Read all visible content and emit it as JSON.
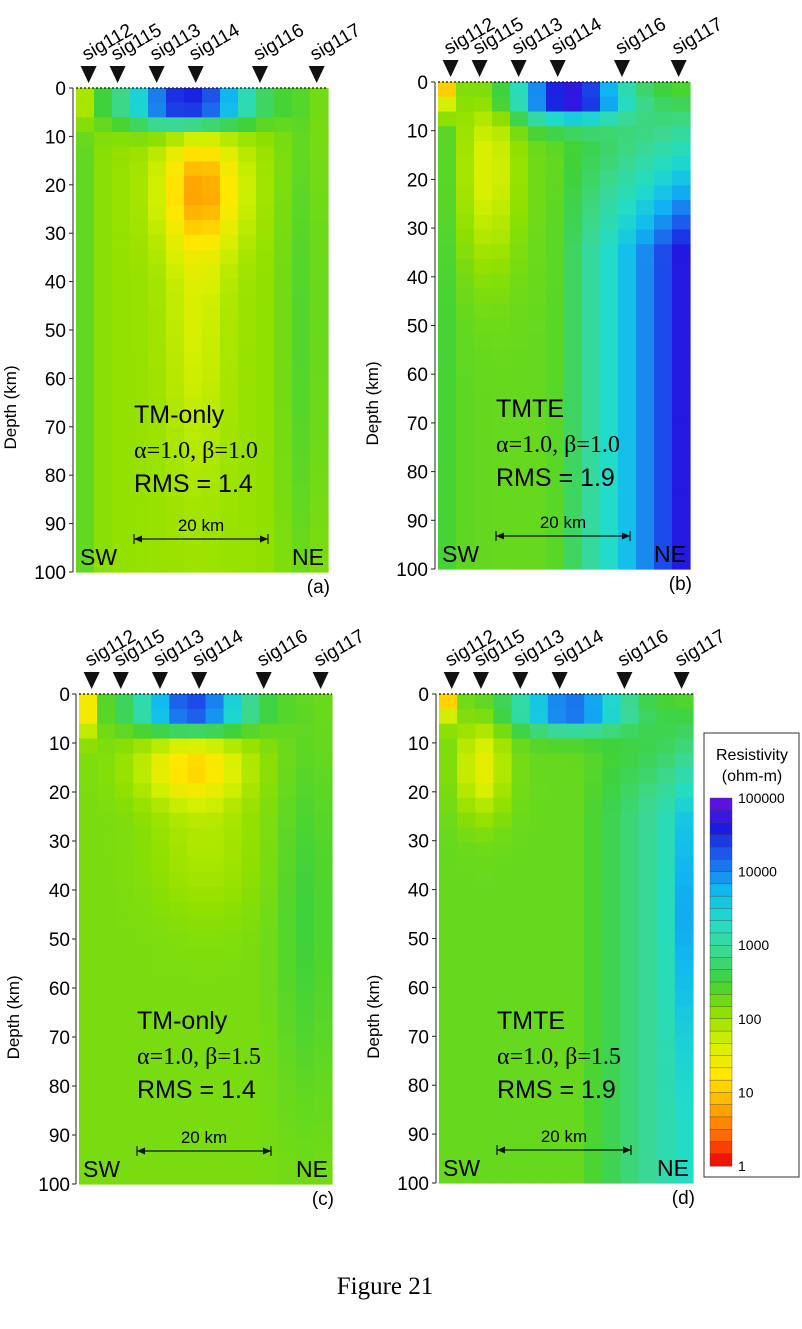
{
  "figure_caption": "Figure 21",
  "shared": {
    "ylabel": "Depth (km)",
    "y_ticks": [
      "0",
      "10",
      "20",
      "30",
      "40",
      "50",
      "60",
      "70",
      "80",
      "90",
      "100"
    ],
    "stations": [
      "sig112",
      "sig115",
      "sig113",
      "sig114",
      "sig116",
      "sig117"
    ],
    "left_label": "SW",
    "right_label": "NE",
    "scale_bar_label": "20 km"
  },
  "colorbar": {
    "title_line1": "Resistivity",
    "title_line2": "(ohm-m)",
    "labels": [
      "100000",
      "10000",
      "1000",
      "100",
      "10",
      "1"
    ],
    "scale": "log",
    "range": [
      1,
      100000
    ],
    "colors": [
      "#ee0000",
      "#ff6a00",
      "#ffb000",
      "#ffe800",
      "#d6f000",
      "#90e000",
      "#3fd23a",
      "#3cd890",
      "#22dcc8",
      "#10b8f2",
      "#1c66ec",
      "#1a1ae0",
      "#6a10e4"
    ]
  },
  "chart_data": [
    {
      "type": "heatmap",
      "panel_label": "(a)",
      "mode_label": "TM-only",
      "param_label": "α=1.0, β=1.0",
      "rms_label": "RMS = 1.4",
      "ylim": [
        0,
        100
      ],
      "features": [
        {
          "kind": "conductor",
          "log10_ohm_m": 1.0,
          "depth_km": 20
        },
        {
          "kind": "resistor",
          "log10_ohm_m": 4.9,
          "depth_km": 3
        }
      ]
    },
    {
      "type": "heatmap",
      "panel_label": "(b)",
      "mode_label": "TMTE",
      "param_label": "α=1.0, β=1.0",
      "rms_label": "RMS = 1.9",
      "ylim": [
        0,
        100
      ],
      "features": [
        {
          "kind": "resistor",
          "log10_ohm_m": 4.8,
          "depth_km": 3
        },
        {
          "kind": "resistor",
          "log10_ohm_m": 4.7,
          "depth_km": 70
        }
      ]
    },
    {
      "type": "heatmap",
      "panel_label": "(c)",
      "mode_label": "TM-only",
      "param_label": "α=1.0, β=1.5",
      "rms_label": "RMS = 1.4",
      "ylim": [
        0,
        100
      ],
      "features": [
        {
          "kind": "conductor",
          "log10_ohm_m": 1.2,
          "depth_km": 15
        },
        {
          "kind": "resistor",
          "log10_ohm_m": 4.6,
          "depth_km": 3
        }
      ]
    },
    {
      "type": "heatmap",
      "panel_label": "(d)",
      "mode_label": "TMTE",
      "param_label": "α=1.0, β=1.5",
      "rms_label": "RMS = 1.9",
      "ylim": [
        0,
        100
      ],
      "features": [
        {
          "kind": "resistor",
          "log10_ohm_m": 4.3,
          "depth_km": 3
        },
        {
          "kind": "resistor",
          "log10_ohm_m": 3.8,
          "depth_km": 40
        }
      ]
    }
  ]
}
